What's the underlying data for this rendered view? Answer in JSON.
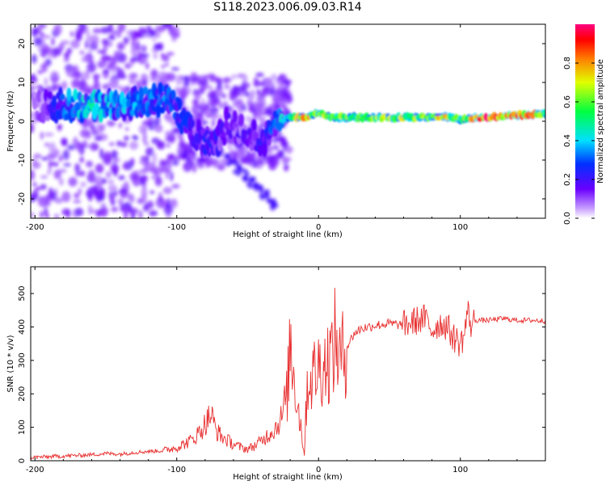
{
  "title": "S118.2023.006.09.03.R14",
  "colors": {
    "snr_line": "#e83030",
    "spectrogram_cloud": "#b070ff",
    "spectrogram_core": "#6a00ff",
    "axes": "#000000"
  },
  "chart_data": [
    {
      "type": "heatmap",
      "xlabel": "Height of straight line (km)",
      "ylabel": "Frequency (Hz)",
      "xlim": [
        -203,
        160
      ],
      "ylim": [
        -25,
        25
      ],
      "xticks": [
        -200,
        -100,
        0,
        100
      ],
      "xtick_labels": [
        "-200",
        "-100",
        "0",
        "100"
      ],
      "yticks": [
        -20,
        -10,
        0,
        10,
        20
      ],
      "ytick_labels": [
        "-20",
        "-10",
        "0",
        "10",
        "20"
      ],
      "colormap": "rainbow (purple-blue-cyan-green-yellow-red-magenta)",
      "colorbar": {
        "label": "Normalized spectral amplitude",
        "range": [
          0.0,
          1.0
        ],
        "ticks": [
          0.0,
          0.2,
          0.4,
          0.6,
          0.8
        ],
        "tick_labels": [
          "0.0",
          "0.2",
          "0.4",
          "0.6",
          "0.8"
        ]
      },
      "ridge": {
        "x": [
          -195,
          -180,
          -160,
          -140,
          -120,
          -105,
          -95,
          -85,
          -75,
          -65,
          -55,
          -45,
          -38,
          -30,
          -25,
          -20,
          -10,
          0,
          10,
          30,
          60,
          90,
          100,
          120,
          140,
          160
        ],
        "y": [
          4,
          4,
          4,
          4.5,
          5,
          6,
          0,
          -4,
          -7,
          -1,
          -2,
          -4,
          -5,
          -1,
          0.5,
          1,
          1,
          2,
          1,
          1,
          1,
          1,
          0.5,
          1,
          1.5,
          2
        ],
        "amplitude": [
          0.1,
          0.3,
          0.4,
          0.35,
          0.3,
          0.3,
          0.25,
          0.2,
          0.2,
          0.15,
          0.15,
          0.15,
          0.2,
          0.3,
          0.4,
          0.5,
          0.7,
          0.6,
          0.6,
          0.55,
          0.6,
          0.65,
          0.55,
          0.9,
          0.8,
          0.6
        ]
      }
    },
    {
      "type": "line",
      "xlabel": "Height of straight line (km)",
      "ylabel": "SNR (10 * v/v)",
      "xlim": [
        -203,
        160
      ],
      "ylim": [
        0,
        580
      ],
      "xticks": [
        -200,
        -100,
        0,
        100
      ],
      "xtick_labels": [
        "-200",
        "-100",
        "0",
        "100"
      ],
      "yticks": [
        0,
        100,
        200,
        300,
        400,
        500
      ],
      "ytick_labels": [
        "0",
        "100",
        "200",
        "300",
        "400",
        "500"
      ],
      "series": [
        {
          "x": [
            -203,
            -190,
            -175,
            -160,
            -150,
            -140,
            -130,
            -120,
            -110,
            -100,
            -95,
            -90,
            -85,
            -80,
            -76,
            -72,
            -68,
            -64,
            -60,
            -55,
            -50,
            -45,
            -40,
            -35,
            -30,
            -26,
            -22,
            -20,
            -18,
            -15,
            -12,
            -10,
            -8,
            -5,
            0,
            5,
            10,
            12,
            15,
            20,
            25,
            30,
            40,
            50,
            60,
            70,
            75,
            80,
            85,
            90,
            95,
            100,
            103,
            105,
            108,
            110,
            120,
            130,
            140,
            150,
            160
          ],
          "y": [
            10,
            12,
            15,
            18,
            22,
            20,
            25,
            28,
            30,
            40,
            50,
            60,
            80,
            110,
            140,
            90,
            70,
            60,
            50,
            40,
            35,
            45,
            60,
            80,
            100,
            130,
            200,
            360,
            280,
            180,
            90,
            20,
            230,
            250,
            280,
            290,
            320,
            370,
            300,
            340,
            380,
            395,
            405,
            410,
            405,
            420,
            425,
            390,
            410,
            405,
            370,
            350,
            380,
            450,
            400,
            420,
            420,
            425,
            420,
            420,
            418
          ]
        }
      ]
    }
  ]
}
